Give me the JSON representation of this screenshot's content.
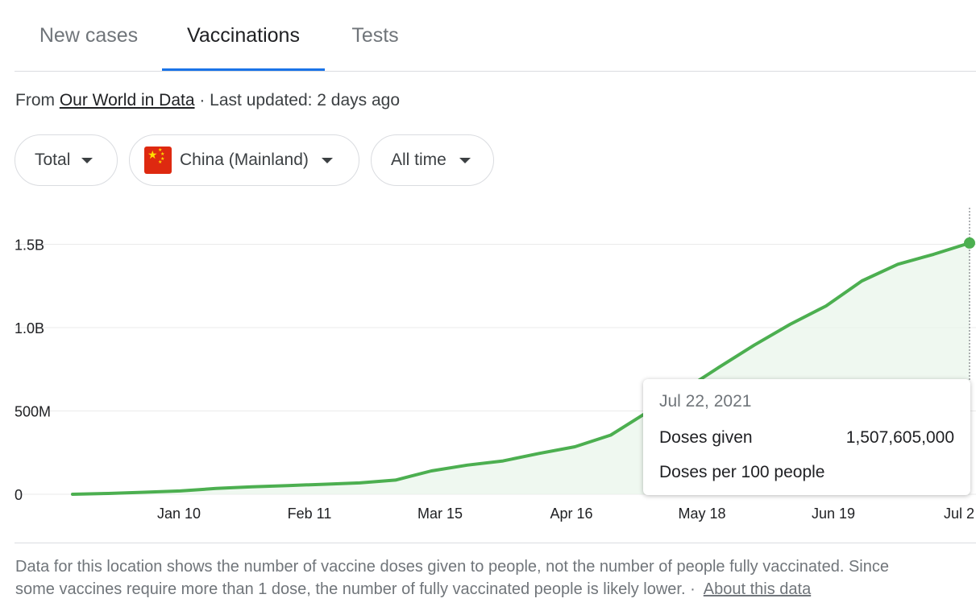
{
  "tabs": [
    {
      "label": "New cases"
    },
    {
      "label": "Vaccinations"
    },
    {
      "label": "Tests"
    }
  ],
  "source": {
    "prefix": "From",
    "link": "Our World in Data",
    "updated": "· Last updated: 2 days ago"
  },
  "filters": {
    "measure": "Total",
    "location": "China (Mainland)",
    "range": "All time"
  },
  "chart_data": {
    "type": "area",
    "x": [
      "Dec 15",
      "Dec 31",
      "Jan 10",
      "Jan 20",
      "Feb 1",
      "Feb 11",
      "Feb 20",
      "Mar 1",
      "Mar 15",
      "Mar 24",
      "Apr 1",
      "Apr 10",
      "Apr 16",
      "Apr 25",
      "May 1",
      "May 10",
      "May 18",
      "May 24",
      "Jun 1",
      "Jun 10",
      "Jun 19",
      "Jun 25",
      "Jul 1",
      "Jul 10",
      "Jul 16",
      "Jul 22"
    ],
    "series": [
      {
        "values": [
          0,
          5,
          12,
          20,
          35,
          45,
          52,
          60,
          68,
          85,
          140,
          175,
          200,
          245,
          285,
          355,
          490,
          620,
          760,
          895,
          1020,
          1130,
          1280,
          1380,
          1440,
          1507.6
        ]
      }
    ],
    "y_unit": "millions",
    "yticks": [
      "0",
      "500M",
      "1.0B",
      "1.5B"
    ],
    "ytick_values": [
      0,
      500,
      1000,
      1500
    ],
    "ylim": [
      0,
      1650
    ],
    "xticks": [
      "Jan 10",
      "Feb 11",
      "Mar 15",
      "Apr 16",
      "May 18",
      "Jun 19",
      "Jul 2"
    ],
    "grid": true,
    "legend": "none",
    "line_color": "#4caf50",
    "fill_color": "#e8f5e9"
  },
  "tooltip": {
    "date": "Jul 22, 2021",
    "doses_label": "Doses given",
    "doses_value": "1,507,605,000",
    "per100_label": "Doses per 100 people",
    "per100_value": ""
  },
  "footnote": {
    "line1": "Data for this location shows the number of vaccine doses given to people, not the number of people fully vaccinated. Since",
    "line2": "some vaccines require more than 1 dose, the number of fully vaccinated people is likely lower.  ·",
    "link": "About this data"
  }
}
